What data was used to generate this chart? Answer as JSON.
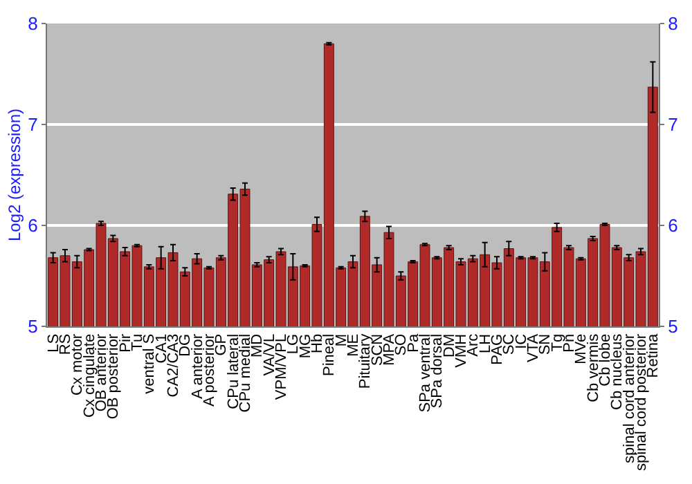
{
  "chart_data": {
    "type": "bar",
    "ylabel": "Log2 (expression)",
    "categories": [
      "LS",
      "RS",
      "Cx motor",
      "Cx cingulate",
      "OB anterior",
      "OB posterior",
      "Pir",
      "Tu",
      "ventral S",
      "CA1",
      "CA2/CA3",
      "DG",
      "A anterior",
      "A posterior",
      "GP",
      "CPu lateral",
      "CPu medial",
      "MD",
      "VA/VL",
      "VPM/VPL",
      "LG",
      "MG",
      "Hb",
      "Pineal",
      "M",
      "ME",
      "Pituitary",
      "SCN",
      "MPA",
      "SO",
      "Pa",
      "SPa ventral",
      "SPa dorsal",
      "DM",
      "VMH",
      "Arc",
      "LH",
      "PAG",
      "SC",
      "IC",
      "VTA",
      "SN",
      "Tg",
      "Pn",
      "MVe",
      "Cb vermis",
      "Cb lobe",
      "Cb nucleus",
      "spinal cord anterior",
      "spinal cord posterior",
      "Retina"
    ],
    "values": [
      5.68,
      5.7,
      5.64,
      5.76,
      6.02,
      5.87,
      5.74,
      5.8,
      5.59,
      5.68,
      5.73,
      5.54,
      5.67,
      5.58,
      5.68,
      6.31,
      6.36,
      5.61,
      5.66,
      5.74,
      5.59,
      5.6,
      6.01,
      7.8,
      5.58,
      5.64,
      6.09,
      5.61,
      5.93,
      5.5,
      5.64,
      5.81,
      5.68,
      5.78,
      5.64,
      5.67,
      5.71,
      5.63,
      5.77,
      5.68,
      5.68,
      5.64,
      5.98,
      5.78,
      5.67,
      5.87,
      6.01,
      5.78,
      5.68,
      5.74,
      7.37
    ],
    "errors": [
      0.05,
      0.06,
      0.06,
      0.01,
      0.02,
      0.03,
      0.04,
      0.01,
      0.02,
      0.11,
      0.08,
      0.04,
      0.05,
      0.01,
      0.02,
      0.06,
      0.06,
      0.02,
      0.03,
      0.03,
      0.13,
      0.01,
      0.07,
      0.01,
      0.01,
      0.06,
      0.05,
      0.07,
      0.06,
      0.04,
      0.01,
      0.01,
      0.01,
      0.02,
      0.03,
      0.03,
      0.12,
      0.06,
      0.07,
      0.01,
      0.01,
      0.09,
      0.04,
      0.02,
      0.01,
      0.02,
      0.01,
      0.02,
      0.03,
      0.03,
      0.25
    ],
    "color": "#b02a2a",
    "ylim": [
      5,
      8
    ],
    "yticks": [
      5,
      6,
      7,
      8
    ],
    "y2lim": [
      5,
      8
    ],
    "y2ticks": [
      5,
      6,
      7,
      8
    ],
    "grid": "y"
  }
}
